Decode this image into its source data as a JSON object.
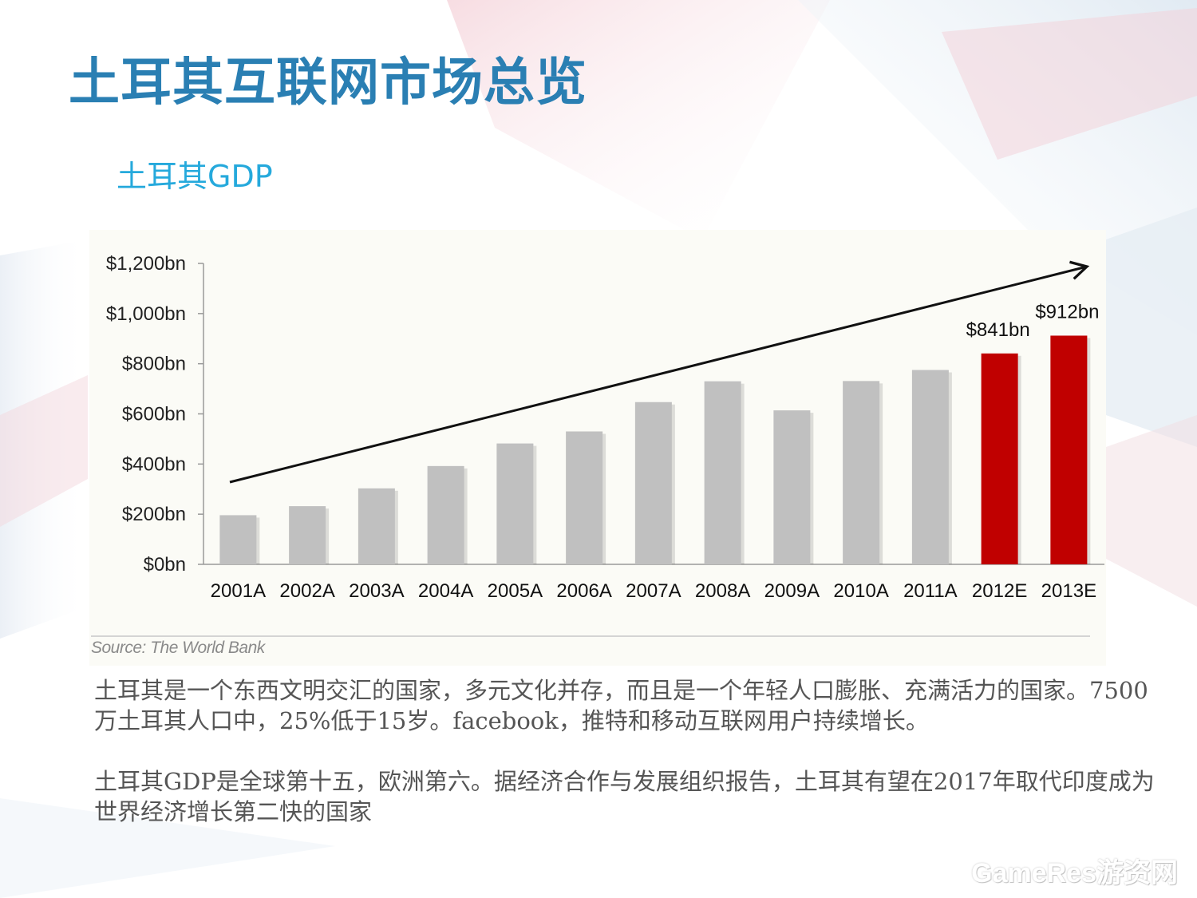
{
  "slide": {
    "title": "土耳其互联网市场总览",
    "subtitle": "土耳其GDP",
    "source": "Source: The World Bank",
    "paragraph1": "土耳其是一个东西文明交汇的国家，多元文化并存，而且是一个年轻人口膨胀、充满活力的国家。7500万土耳其人口中，25%低于15岁。facebook，推特和移动互联网用户持续增长。",
    "paragraph2": "土耳其GDP是全球第十五，欧洲第六。据经济合作与发展组织报告，土耳其有望在2017年取代印度成为世界经济增长第二快的国家",
    "watermark": "GameRes游资网"
  },
  "colors": {
    "title": "#2a7fb3",
    "subtitle": "#25a9dc",
    "actual_bar": "#c0c0c0",
    "estimate_bar": "#c00000",
    "text": "#555555"
  },
  "chart_data": {
    "type": "bar",
    "title": "",
    "xlabel": "",
    "ylabel": "",
    "categories": [
      "2001A",
      "2002A",
      "2003A",
      "2004A",
      "2005A",
      "2006A",
      "2007A",
      "2008A",
      "2009A",
      "2010A",
      "2011A",
      "2012E",
      "2013E"
    ],
    "values": [
      196,
      232,
      303,
      392,
      482,
      530,
      647,
      730,
      614,
      731,
      775,
      841,
      912
    ],
    "estimate": [
      false,
      false,
      false,
      false,
      false,
      false,
      false,
      false,
      false,
      false,
      false,
      true,
      true
    ],
    "data_labels": [
      "",
      "",
      "",
      "",
      "",
      "",
      "",
      "",
      "",
      "",
      "",
      "$841bn",
      "$912bn"
    ],
    "ylim": [
      0,
      1200
    ],
    "yticks": [
      0,
      200,
      400,
      600,
      800,
      1000,
      1200
    ],
    "ytick_labels": [
      "$0bn",
      "$200bn",
      "$400bn",
      "$600bn",
      "$800bn",
      "$1,000bn",
      "$1,200bn"
    ],
    "trend_arrow": true,
    "grid": false,
    "legend": "none"
  }
}
